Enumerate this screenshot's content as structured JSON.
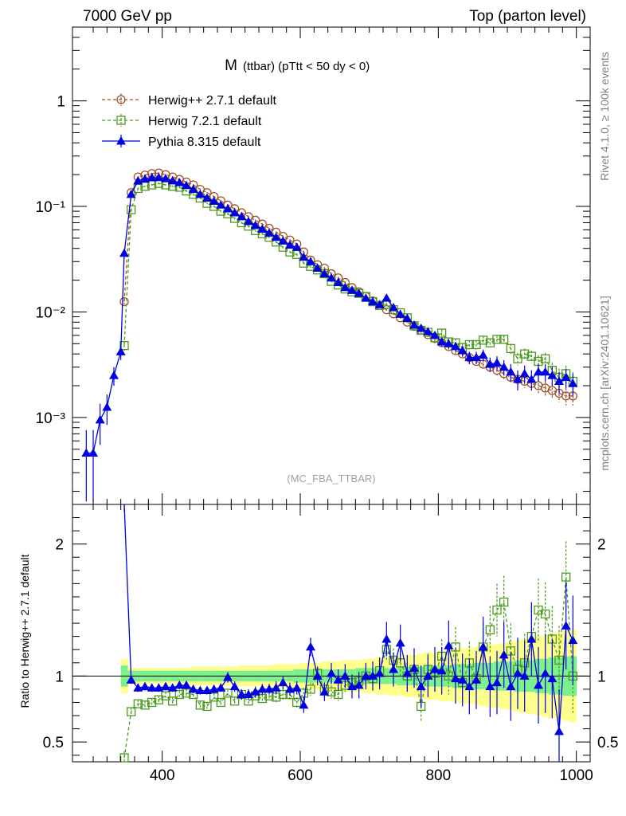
{
  "header": {
    "left": "7000 GeV pp",
    "right": "Top (parton level)"
  },
  "side_labels": {
    "rivet": "Rivet 4.1.0, ≥ 100k events",
    "mcplots": "mcplots.cern.ch [arXiv:2401.10621]"
  },
  "chart_data": {
    "type": "line",
    "title_main": "M",
    "title_sub": "(ttbar) (pTtt < 50 dy < 0)",
    "analysis_tag": "(MC_FBA_TTBAR)",
    "xlim": [
      270,
      1020
    ],
    "main": {
      "yscale": "log",
      "ylim": [
        0.00015,
        5
      ],
      "ytick_labels": [
        "1",
        "10⁻¹",
        "10⁻²",
        "10⁻³"
      ]
    },
    "ratio": {
      "ylabel": "Ratio to Herwig++ 2.7.1 default",
      "ylim": [
        0.35,
        2.3
      ],
      "ytick_labels": [
        "2",
        "1",
        "0.5"
      ]
    },
    "xtick_labels": [
      "400",
      "600",
      "800",
      "1000"
    ],
    "legend": [
      {
        "name": "Herwig++ 2.7.1 default",
        "color": "#a0522d",
        "marker": "circle",
        "dash": true
      },
      {
        "name": "Herwig 7.2.1 default",
        "color": "#4d9a1e",
        "marker": "square",
        "dash": true
      },
      {
        "name": "Pythia 8.315 default",
        "color": "#0000e0",
        "marker": "triangle",
        "dash": false
      }
    ],
    "colors": {
      "band_inner": "#7cf08c",
      "band_outer": "#ffff8c"
    },
    "x": [
      290,
      300,
      310,
      320,
      330,
      340,
      345,
      355,
      365,
      375,
      385,
      395,
      405,
      415,
      425,
      435,
      445,
      455,
      465,
      475,
      485,
      495,
      505,
      515,
      525,
      535,
      545,
      555,
      565,
      575,
      585,
      595,
      605,
      615,
      625,
      635,
      645,
      655,
      665,
      675,
      685,
      695,
      705,
      715,
      725,
      735,
      745,
      755,
      765,
      775,
      785,
      795,
      805,
      815,
      825,
      835,
      845,
      855,
      865,
      875,
      885,
      895,
      905,
      915,
      925,
      935,
      945,
      955,
      965,
      975,
      985,
      995
    ],
    "series": [
      {
        "name": "Herwig++ 2.7.1 default",
        "values": [
          null,
          null,
          null,
          null,
          null,
          null,
          0.0125,
          0.135,
          0.19,
          0.198,
          0.205,
          0.207,
          0.2,
          0.19,
          0.18,
          0.17,
          0.16,
          0.145,
          0.135,
          0.124,
          0.113,
          0.103,
          0.095,
          0.087,
          0.08,
          0.074,
          0.068,
          0.062,
          0.057,
          0.052,
          0.048,
          0.044,
          0.037,
          0.031,
          0.028,
          0.026,
          0.023,
          0.021,
          0.019,
          0.017,
          0.0155,
          0.014,
          0.0127,
          0.0115,
          0.0105,
          0.0096,
          0.0088,
          0.008,
          0.0073,
          0.0067,
          0.0061,
          0.0056,
          0.0051,
          0.0047,
          0.0043,
          0.004,
          0.0037,
          0.0034,
          0.0032,
          0.003,
          0.0028,
          0.0026,
          0.0024,
          0.0023,
          0.0022,
          0.0021,
          0.002,
          0.0019,
          0.0018,
          0.0017,
          0.0016,
          0.0016
        ],
        "errors": [
          null,
          null,
          null,
          null,
          null,
          null,
          0.0008,
          0.003,
          0.003,
          0.003,
          0.003,
          0.003,
          0.003,
          0.003,
          0.003,
          0.003,
          0.003,
          0.002,
          0.002,
          0.002,
          0.002,
          0.002,
          0.0015,
          0.0015,
          0.0015,
          0.0012,
          0.0012,
          0.001,
          0.001,
          0.001,
          0.0009,
          0.0009,
          0.0008,
          0.0007,
          0.0007,
          0.0006,
          0.0006,
          0.0005,
          0.0005,
          0.0005,
          0.0004,
          0.0004,
          0.0004,
          0.0004,
          0.0003,
          0.0003,
          0.0003,
          0.0003,
          0.0003,
          0.0003,
          0.0003,
          0.0003,
          0.0003,
          0.0003,
          0.0003,
          0.0003,
          0.0003,
          0.0003,
          0.0003,
          0.0003,
          0.0003,
          0.0003,
          0.0003,
          0.0003,
          0.0003,
          0.0003,
          0.0003,
          0.0003,
          0.0003,
          0.0003,
          0.0003,
          0.0003
        ]
      },
      {
        "name": "Herwig 7.2.1 default",
        "values": [
          null,
          null,
          null,
          null,
          null,
          null,
          0.0048,
          0.093,
          0.148,
          0.155,
          0.16,
          0.165,
          0.16,
          0.155,
          0.152,
          0.14,
          0.13,
          0.12,
          0.107,
          0.1,
          0.09,
          0.085,
          0.077,
          0.07,
          0.065,
          0.059,
          0.055,
          0.051,
          0.046,
          0.041,
          0.037,
          0.035,
          0.029,
          0.027,
          0.025,
          0.023,
          0.0195,
          0.018,
          0.0165,
          0.0155,
          0.015,
          0.014,
          0.0125,
          0.0115,
          0.0118,
          0.0105,
          0.0098,
          0.0088,
          0.0074,
          0.0067,
          0.0064,
          0.0057,
          0.0063,
          0.0052,
          0.0051,
          0.0046,
          0.0049,
          0.0049,
          0.0054,
          0.0051,
          0.0055,
          0.0055,
          0.0045,
          0.0036,
          0.004,
          0.0038,
          0.0034,
          0.0036,
          0.0028,
          0.0024,
          0.0026,
          0.0022
        ],
        "errors": [
          null,
          null,
          null,
          null,
          null,
          null,
          0.0005,
          0.003,
          0.003,
          0.003,
          0.003,
          0.003,
          0.003,
          0.003,
          0.003,
          0.003,
          0.003,
          0.002,
          0.002,
          0.002,
          0.002,
          0.002,
          0.0015,
          0.0015,
          0.0015,
          0.0012,
          0.0012,
          0.001,
          0.001,
          0.001,
          0.0009,
          0.0009,
          0.0008,
          0.0007,
          0.0007,
          0.0006,
          0.0006,
          0.0005,
          0.0005,
          0.0005,
          0.0005,
          0.0005,
          0.0005,
          0.0005,
          0.0005,
          0.0005,
          0.0005,
          0.0005,
          0.0005,
          0.0005,
          0.0005,
          0.0005,
          0.0005,
          0.0005,
          0.0005,
          0.0005,
          0.0005,
          0.0005,
          0.0005,
          0.0005,
          0.0005,
          0.0005,
          0.0005,
          0.0005,
          0.0005,
          0.0005,
          0.0005,
          0.0005,
          0.0005,
          0.0005,
          0.0005,
          0.0005
        ]
      },
      {
        "name": "Pythia 8.315 default",
        "values": [
          0.00046,
          0.00046,
          0.00095,
          0.00125,
          0.0025,
          0.0042,
          0.036,
          0.13,
          0.175,
          0.182,
          0.187,
          0.188,
          0.183,
          0.175,
          0.168,
          0.158,
          0.145,
          0.13,
          0.12,
          0.112,
          0.103,
          0.095,
          0.087,
          0.08,
          0.072,
          0.066,
          0.061,
          0.056,
          0.051,
          0.047,
          0.043,
          0.041,
          0.033,
          0.03,
          0.026,
          0.023,
          0.021,
          0.019,
          0.017,
          0.016,
          0.015,
          0.0135,
          0.0125,
          0.0117,
          0.0135,
          0.011,
          0.0095,
          0.0087,
          0.0075,
          0.007,
          0.0065,
          0.006,
          0.0052,
          0.005,
          0.0047,
          0.0043,
          0.0037,
          0.0037,
          0.0039,
          0.0032,
          0.0033,
          0.003,
          0.0027,
          0.0023,
          0.0026,
          0.0023,
          0.0027,
          0.0027,
          0.0025,
          0.0022,
          0.0024,
          0.0021
        ],
        "errors": [
          0.0003,
          0.0003,
          0.0004,
          0.0004,
          0.0005,
          0.0007,
          0.003,
          0.004,
          0.004,
          0.004,
          0.004,
          0.004,
          0.004,
          0.004,
          0.004,
          0.003,
          0.003,
          0.003,
          0.003,
          0.003,
          0.002,
          0.002,
          0.002,
          0.002,
          0.002,
          0.002,
          0.0015,
          0.0015,
          0.0015,
          0.0012,
          0.0012,
          0.0012,
          0.001,
          0.001,
          0.0009,
          0.0008,
          0.0008,
          0.0007,
          0.0007,
          0.0006,
          0.0006,
          0.0006,
          0.0006,
          0.0006,
          0.0007,
          0.0006,
          0.0006,
          0.0006,
          0.0005,
          0.0005,
          0.0005,
          0.0005,
          0.0005,
          0.0005,
          0.0005,
          0.0005,
          0.0005,
          0.0005,
          0.0005,
          0.0005,
          0.0005,
          0.0005,
          0.0005,
          0.0005,
          0.0005,
          0.0005,
          0.0005,
          0.0005,
          0.0005,
          0.0005,
          0.0005,
          0.0005
        ]
      }
    ],
    "ratio_series": [
      {
        "name": "Herwig 7.2.1 default",
        "values": [
          null,
          null,
          null,
          null,
          null,
          null,
          0.38,
          0.73,
          0.79,
          0.78,
          0.8,
          0.82,
          0.85,
          0.81,
          0.86,
          0.87,
          0.86,
          0.78,
          0.77,
          0.84,
          0.8,
          0.87,
          0.81,
          0.86,
          0.81,
          0.85,
          0.83,
          0.85,
          0.84,
          0.86,
          0.86,
          0.8,
          0.87,
          0.9,
          1.02,
          0.9,
          0.88,
          0.86,
          0.93,
          0.95,
          0.96,
          1.0,
          0.98,
          1.04,
          1.2,
          1.12,
          1.1,
          1.0,
          1.05,
          0.77,
          1.05,
          1.02,
          1.15,
          1.0,
          1.22,
          0.95,
          1.1,
          0.98,
          1.22,
          1.35,
          1.5,
          1.56,
          1.19,
          1.05,
          1.1,
          1.3,
          1.5,
          1.47,
          1.28,
          1.12,
          1.75,
          1.0
        ],
        "errors": [
          null,
          null,
          null,
          null,
          null,
          null,
          0.05,
          0.03,
          0.03,
          0.03,
          0.03,
          0.03,
          0.03,
          0.03,
          0.03,
          0.03,
          0.03,
          0.03,
          0.03,
          0.03,
          0.03,
          0.03,
          0.03,
          0.03,
          0.03,
          0.03,
          0.03,
          0.03,
          0.04,
          0.04,
          0.04,
          0.04,
          0.04,
          0.05,
          0.05,
          0.05,
          0.05,
          0.05,
          0.06,
          0.06,
          0.07,
          0.07,
          0.08,
          0.08,
          0.09,
          0.09,
          0.1,
          0.1,
          0.11,
          0.12,
          0.12,
          0.13,
          0.13,
          0.14,
          0.15,
          0.15,
          0.16,
          0.17,
          0.18,
          0.18,
          0.2,
          0.2,
          0.21,
          0.22,
          0.22,
          0.23,
          0.24,
          0.24,
          0.25,
          0.26,
          0.27,
          0.28
        ]
      },
      {
        "name": "Pythia 8.315 default",
        "values": [
          null,
          null,
          null,
          null,
          null,
          null,
          2.4,
          0.97,
          0.91,
          0.92,
          0.91,
          0.91,
          0.92,
          0.91,
          0.93,
          0.93,
          0.9,
          0.89,
          0.89,
          0.9,
          0.91,
          0.99,
          0.92,
          0.86,
          0.86,
          0.88,
          0.9,
          0.9,
          0.91,
          0.95,
          0.9,
          0.91,
          0.78,
          1.22,
          1.0,
          0.88,
          1.02,
          0.97,
          1.0,
          0.92,
          0.93,
          1.0,
          1.0,
          1.02,
          1.28,
          1.05,
          1.25,
          1.02,
          1.06,
          0.92,
          1.0,
          1.05,
          1.04,
          1.23,
          0.98,
          0.97,
          0.92,
          0.97,
          1.22,
          0.92,
          0.95,
          1.16,
          0.92,
          1.02,
          1.0,
          1.28,
          0.93,
          1.02,
          0.98,
          0.58,
          1.38,
          1.27
        ],
        "errors": [
          null,
          null,
          null,
          null,
          null,
          null,
          0.15,
          0.03,
          0.03,
          0.03,
          0.03,
          0.03,
          0.03,
          0.03,
          0.03,
          0.03,
          0.03,
          0.03,
          0.03,
          0.03,
          0.03,
          0.04,
          0.04,
          0.04,
          0.04,
          0.04,
          0.04,
          0.04,
          0.05,
          0.05,
          0.05,
          0.05,
          0.06,
          0.07,
          0.07,
          0.07,
          0.08,
          0.08,
          0.09,
          0.09,
          0.1,
          0.1,
          0.11,
          0.12,
          0.13,
          0.13,
          0.14,
          0.14,
          0.15,
          0.16,
          0.16,
          0.17,
          0.18,
          0.19,
          0.19,
          0.2,
          0.21,
          0.22,
          0.23,
          0.23,
          0.24,
          0.25,
          0.26,
          0.27,
          0.27,
          0.28,
          0.29,
          0.3,
          0.3,
          0.32,
          0.33,
          0.34
        ]
      }
    ],
    "ratio_band": {
      "inner_half_width": [
        null,
        null,
        null,
        null,
        null,
        null,
        0.08,
        0.04,
        0.04,
        0.04,
        0.04,
        0.04,
        0.04,
        0.04,
        0.04,
        0.04,
        0.04,
        0.04,
        0.04,
        0.04,
        0.04,
        0.04,
        0.04,
        0.04,
        0.04,
        0.04,
        0.04,
        0.04,
        0.04,
        0.04,
        0.04,
        0.05,
        0.05,
        0.05,
        0.05,
        0.05,
        0.05,
        0.05,
        0.05,
        0.05,
        0.06,
        0.06,
        0.06,
        0.06,
        0.06,
        0.06,
        0.07,
        0.07,
        0.07,
        0.07,
        0.08,
        0.08,
        0.08,
        0.08,
        0.09,
        0.09,
        0.09,
        0.1,
        0.1,
        0.1,
        0.11,
        0.11,
        0.11,
        0.12,
        0.12,
        0.12,
        0.13,
        0.13,
        0.14,
        0.14,
        0.15,
        0.15
      ],
      "outer_half_width": [
        null,
        null,
        null,
        null,
        null,
        null,
        0.13,
        0.06,
        0.06,
        0.06,
        0.06,
        0.06,
        0.06,
        0.06,
        0.06,
        0.06,
        0.07,
        0.07,
        0.07,
        0.07,
        0.07,
        0.07,
        0.07,
        0.08,
        0.08,
        0.08,
        0.08,
        0.08,
        0.09,
        0.09,
        0.09,
        0.09,
        0.1,
        0.1,
        0.1,
        0.11,
        0.11,
        0.11,
        0.12,
        0.12,
        0.12,
        0.13,
        0.13,
        0.14,
        0.14,
        0.15,
        0.15,
        0.16,
        0.16,
        0.17,
        0.18,
        0.18,
        0.19,
        0.19,
        0.2,
        0.21,
        0.21,
        0.22,
        0.23,
        0.24,
        0.24,
        0.25,
        0.26,
        0.27,
        0.28,
        0.29,
        0.3,
        0.31,
        0.32,
        0.33,
        0.34,
        0.35
      ]
    }
  }
}
